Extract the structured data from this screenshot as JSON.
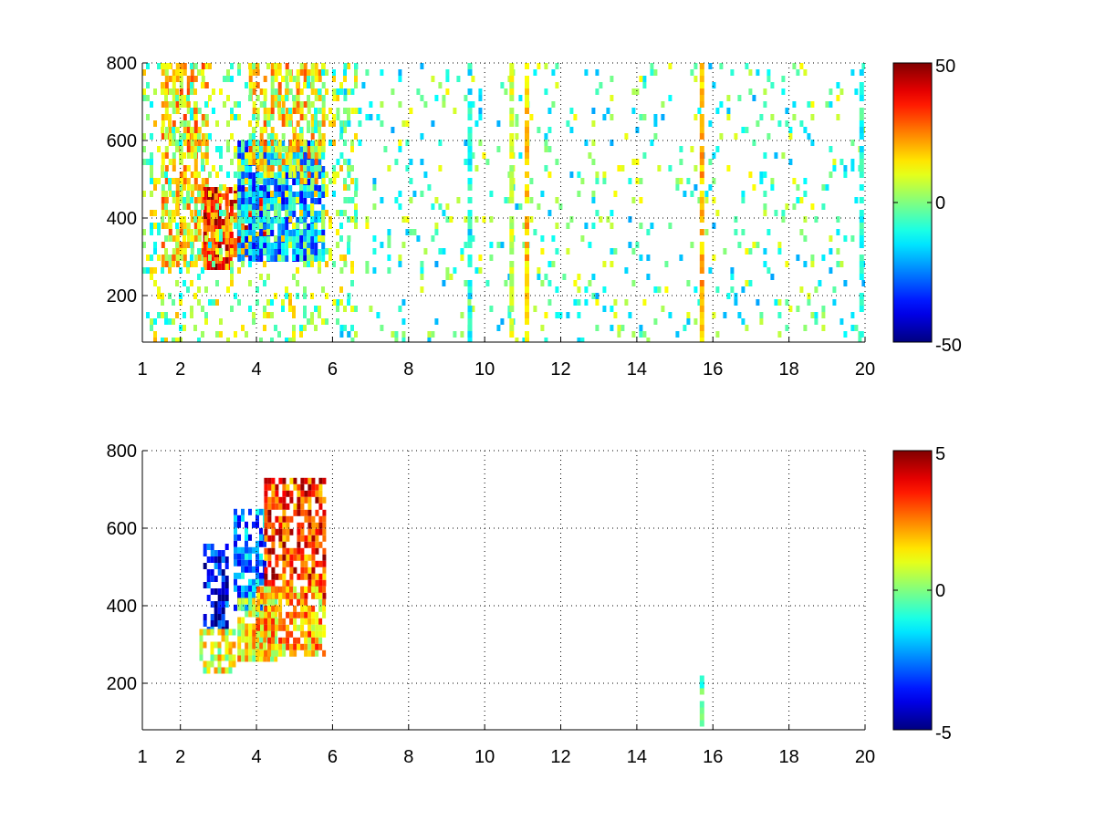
{
  "chart_data": [
    {
      "type": "heatmap",
      "title": "",
      "xlabel": "",
      "ylabel": "",
      "xlim": [
        1,
        20
      ],
      "ylim": [
        80,
        800
      ],
      "grid": true,
      "grid_style": "dotted",
      "colormap": "jet",
      "color_limits": [
        -50,
        50
      ],
      "x_ticks": [
        1,
        2,
        4,
        6,
        8,
        10,
        12,
        14,
        16,
        18,
        20
      ],
      "y_ticks": [
        200,
        400,
        600,
        800
      ],
      "colorbar_ticks": [
        50,
        0,
        -50
      ],
      "regions": [
        {
          "x": [
            1.5,
            2.7
          ],
          "y": [
            280,
            800
          ],
          "level": 15,
          "density": 0.6
        },
        {
          "x": [
            2.6,
            3.3
          ],
          "y": [
            280,
            480
          ],
          "level": 33,
          "density": 0.9
        },
        {
          "x": [
            3.3,
            4.3
          ],
          "y": [
            300,
            480
          ],
          "level": 30,
          "density": 0.8
        },
        {
          "x": [
            3.5,
            5.8
          ],
          "y": [
            300,
            600
          ],
          "level": -22,
          "density": 0.85
        },
        {
          "x": [
            3.8,
            5.8
          ],
          "y": [
            500,
            800
          ],
          "level": 14,
          "density": 0.55
        },
        {
          "x": [
            1.0,
            6.6
          ],
          "y": [
            80,
            800
          ],
          "level": 3,
          "density": 0.22
        },
        {
          "x": [
            6.0,
            20.0
          ],
          "y": [
            80,
            800
          ],
          "level": -4,
          "density": 0.1
        }
      ],
      "streaks": [
        {
          "x": 11.1,
          "y": [
            80,
            800
          ],
          "level": 18
        },
        {
          "x": 15.7,
          "y": [
            80,
            800
          ],
          "level": 20
        },
        {
          "x": 19.9,
          "y": [
            80,
            800
          ],
          "level": -10
        },
        {
          "x": 9.6,
          "y": [
            80,
            800
          ],
          "level": -12
        },
        {
          "x": 10.7,
          "y": [
            80,
            800
          ],
          "level": 8
        }
      ]
    },
    {
      "type": "heatmap",
      "title": "",
      "xlabel": "",
      "ylabel": "",
      "xlim": [
        1,
        20
      ],
      "ylim": [
        80,
        800
      ],
      "grid": true,
      "grid_style": "dotted",
      "colormap": "jet",
      "color_limits": [
        -5,
        5
      ],
      "x_ticks": [
        1,
        2,
        4,
        6,
        8,
        10,
        12,
        14,
        16,
        18,
        20
      ],
      "y_ticks": [
        200,
        400,
        600,
        800
      ],
      "colorbar_ticks": [
        5,
        0,
        -5
      ],
      "regions": [
        {
          "x": [
            2.6,
            3.2
          ],
          "y": [
            330,
            560
          ],
          "level": -3.8,
          "density": 0.7
        },
        {
          "x": [
            2.5,
            3.4
          ],
          "y": [
            240,
            340
          ],
          "level": 1.0,
          "density": 0.75
        },
        {
          "x": [
            3.4,
            4.2
          ],
          "y": [
            400,
            650
          ],
          "level": -2.5,
          "density": 0.65
        },
        {
          "x": [
            3.5,
            4.5
          ],
          "y": [
            260,
            420
          ],
          "level": 1.2,
          "density": 0.85
        },
        {
          "x": [
            4.2,
            5.8
          ],
          "y": [
            420,
            730
          ],
          "level": 3.2,
          "density": 0.75
        },
        {
          "x": [
            4.0,
            5.8
          ],
          "y": [
            280,
            450
          ],
          "level": 1.8,
          "density": 0.75
        }
      ],
      "streaks": [
        {
          "x": 15.7,
          "y": [
            90,
            220
          ],
          "level": -0.5
        }
      ]
    }
  ]
}
